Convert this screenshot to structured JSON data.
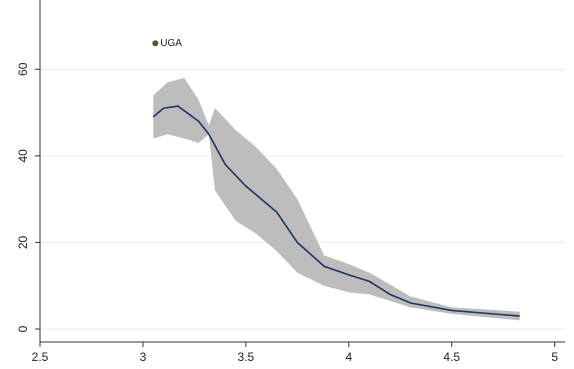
{
  "chart_data": {
    "type": "line",
    "x": [
      3.05,
      3.1,
      3.17,
      3.27,
      3.32,
      3.4,
      3.5,
      3.6,
      3.65,
      3.75,
      3.88,
      4.0,
      4.1,
      4.2,
      4.3,
      4.5,
      4.7,
      4.83
    ],
    "series": [
      {
        "color": "#1f3564",
        "values": [
          49,
          51,
          51.5,
          48,
          45,
          38,
          33,
          29,
          27,
          20,
          14.5,
          12.5,
          11,
          8,
          6,
          4.3,
          3.5,
          3
        ]
      }
    ],
    "band": {
      "color": "#bdbdbd",
      "x": [
        3.05,
        3.12,
        3.2,
        3.27,
        3.32,
        3.35,
        3.45,
        3.55,
        3.65,
        3.75,
        3.88,
        4.0,
        4.1,
        4.3,
        4.5,
        4.83
      ],
      "upper": [
        54,
        57,
        58,
        53,
        47,
        51,
        46,
        42,
        37,
        30,
        17,
        15,
        13,
        7.5,
        5,
        4
      ],
      "lower": [
        44,
        45,
        44,
        43,
        45,
        32,
        25,
        22,
        18,
        13,
        10,
        8.5,
        8,
        5,
        3.5,
        2
      ]
    },
    "points": [
      {
        "label": "UGA",
        "x": 3.06,
        "y": 66,
        "color": "#4b5a36"
      }
    ],
    "xlim": [
      2.5,
      5.05
    ],
    "xticks": [
      2.5,
      3,
      3.5,
      4,
      4.5,
      5
    ],
    "ylim": [
      -3,
      76
    ],
    "yticks": [
      0,
      20,
      40,
      60
    ],
    "grid": true
  }
}
